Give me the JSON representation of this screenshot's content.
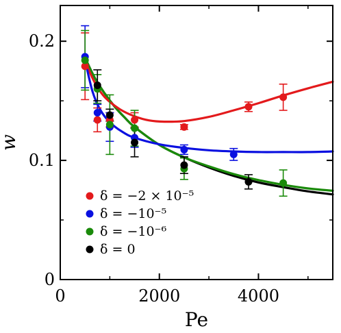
{
  "chart_data": {
    "type": "scatter",
    "xlabel": "Pe",
    "ylabel": "w",
    "xlim": [
      0,
      5500
    ],
    "ylim": [
      0,
      0.23
    ],
    "xticks": [
      0,
      2000,
      4000
    ],
    "xtick_labels": [
      "0",
      "2000",
      "4000"
    ],
    "yticks": [
      0,
      0.1,
      0.2
    ],
    "ytick_labels": [
      "0",
      "0.1",
      "0.2"
    ],
    "grid": false,
    "legend_position": "bottom-left",
    "series": [
      {
        "name": "δ = −2 × 10⁻⁵",
        "color": "#e31a1c",
        "points": [
          {
            "x": 500,
            "y": 0.179,
            "err": 0.028
          },
          {
            "x": 750,
            "y": 0.134,
            "err": 0.01
          },
          {
            "x": 1000,
            "y": 0.134,
            "err": 0.006
          },
          {
            "x": 1500,
            "y": 0.134,
            "err": 0.006
          },
          {
            "x": 2500,
            "y": 0.128,
            "err": 0.002
          },
          {
            "x": 3800,
            "y": 0.145,
            "err": 0.004
          },
          {
            "x": 4500,
            "y": 0.153,
            "err": 0.011
          }
        ],
        "fit": [
          [
            500,
            0.183
          ],
          [
            700,
            0.165
          ],
          [
            900,
            0.153
          ],
          [
            1200,
            0.143
          ],
          [
            1500,
            0.137
          ],
          [
            1800,
            0.1335
          ],
          [
            2100,
            0.1325
          ],
          [
            2500,
            0.133
          ],
          [
            3000,
            0.1365
          ],
          [
            3500,
            0.142
          ],
          [
            4000,
            0.148
          ],
          [
            4500,
            0.1545
          ],
          [
            5000,
            0.1605
          ],
          [
            5500,
            0.166
          ]
        ]
      },
      {
        "name": "δ = −10⁻⁵",
        "color": "#0a10e0",
        "points": [
          {
            "x": 500,
            "y": 0.187,
            "err": 0.026
          },
          {
            "x": 750,
            "y": 0.14,
            "err": 0.007
          },
          {
            "x": 1000,
            "y": 0.128,
            "err": 0.012
          },
          {
            "x": 1500,
            "y": 0.119,
            "err": 0.008
          },
          {
            "x": 2500,
            "y": 0.109,
            "err": 0.004
          },
          {
            "x": 3500,
            "y": 0.105,
            "err": 0.005
          }
        ],
        "fit": [
          [
            500,
            0.184
          ],
          [
            650,
            0.158
          ],
          [
            800,
            0.143
          ],
          [
            1000,
            0.132
          ],
          [
            1250,
            0.124
          ],
          [
            1500,
            0.119
          ],
          [
            2000,
            0.1135
          ],
          [
            2500,
            0.1105
          ],
          [
            3000,
            0.1085
          ],
          [
            3500,
            0.1075
          ],
          [
            4000,
            0.107
          ],
          [
            4500,
            0.107
          ],
          [
            5000,
            0.107
          ],
          [
            5500,
            0.1075
          ]
        ]
      },
      {
        "name": "δ = −10⁻⁶",
        "color": "#1a8a0a",
        "points": [
          {
            "x": 500,
            "y": 0.184,
            "err": 0.025
          },
          {
            "x": 750,
            "y": 0.16,
            "err": 0.012
          },
          {
            "x": 1000,
            "y": 0.13,
            "err": 0.025
          },
          {
            "x": 1500,
            "y": 0.127,
            "err": 0.015
          },
          {
            "x": 2500,
            "y": 0.093,
            "err": 0.009
          },
          {
            "x": 4500,
            "y": 0.081,
            "err": 0.011
          }
        ],
        "fit": [
          [
            500,
            0.186
          ],
          [
            700,
            0.169
          ],
          [
            900,
            0.156
          ],
          [
            1100,
            0.145
          ],
          [
            1300,
            0.136
          ],
          [
            1500,
            0.128
          ],
          [
            2000,
            0.113
          ],
          [
            2500,
            0.1025
          ],
          [
            3000,
            0.095
          ],
          [
            3500,
            0.0885
          ],
          [
            4000,
            0.0835
          ],
          [
            4500,
            0.0795
          ],
          [
            5000,
            0.0765
          ],
          [
            5500,
            0.0745
          ]
        ]
      },
      {
        "name": "δ = 0",
        "color": "#000000",
        "points": [
          {
            "x": 750,
            "y": 0.163,
            "err": 0.013
          },
          {
            "x": 1000,
            "y": 0.138,
            "err": 0.005
          },
          {
            "x": 1500,
            "y": 0.115,
            "err": 0.012
          },
          {
            "x": 2500,
            "y": 0.096,
            "err": 0.007
          },
          {
            "x": 3800,
            "y": 0.082,
            "err": 0.006
          }
        ],
        "fit": [
          [
            500,
            0.186
          ],
          [
            700,
            0.169
          ],
          [
            900,
            0.156
          ],
          [
            1100,
            0.145
          ],
          [
            1300,
            0.136
          ],
          [
            1500,
            0.128
          ],
          [
            2000,
            0.113
          ],
          [
            2500,
            0.1025
          ],
          [
            3000,
            0.094
          ],
          [
            3500,
            0.087
          ],
          [
            4000,
            0.0815
          ],
          [
            4500,
            0.0775
          ],
          [
            5000,
            0.074
          ],
          [
            5500,
            0.0715
          ]
        ]
      }
    ]
  }
}
